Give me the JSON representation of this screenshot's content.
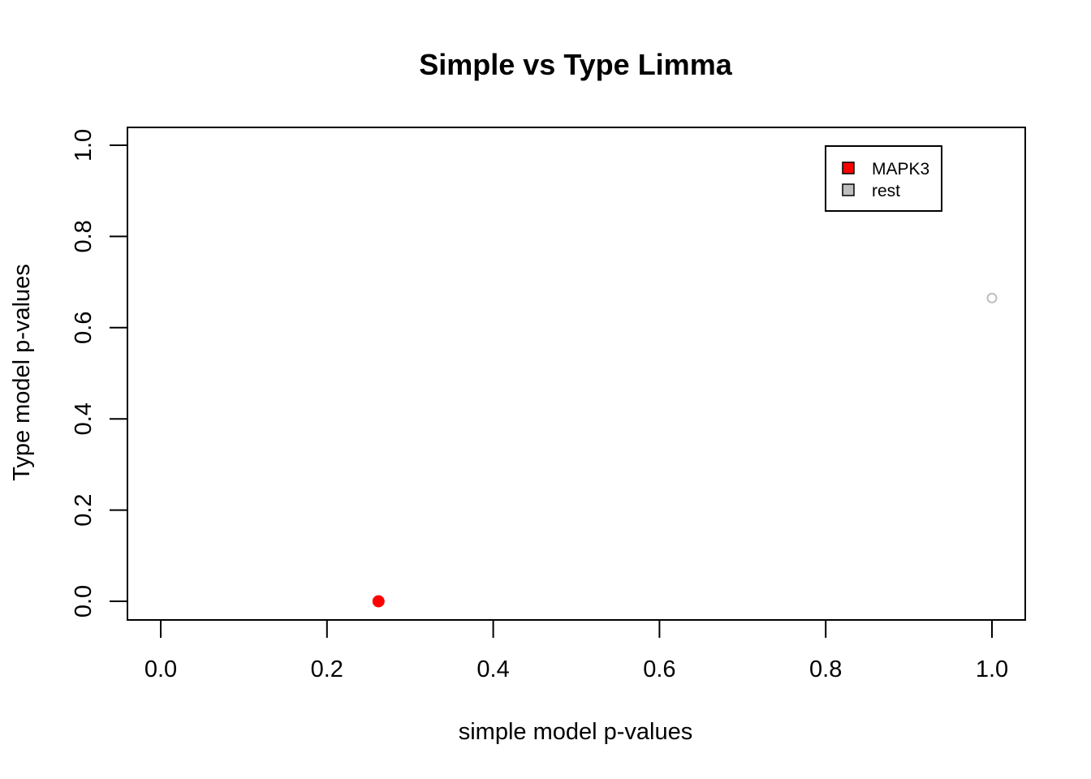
{
  "chart_data": {
    "type": "scatter",
    "title": "Simple vs Type Limma",
    "xlabel": "simple model p-values",
    "ylabel": "Type model p-values",
    "xlim": [
      0,
      1
    ],
    "ylim": [
      0,
      1
    ],
    "xticks": [
      "0.0",
      "0.2",
      "0.4",
      "0.6",
      "0.8",
      "1.0"
    ],
    "yticks": [
      "0.0",
      "0.2",
      "0.4",
      "0.6",
      "0.8",
      "1.0"
    ],
    "grid": false,
    "legend_position": "top-right",
    "series": [
      {
        "name": "MAPK3",
        "color": "#ff0000",
        "marker": "filled-circle",
        "points": [
          {
            "x": 0.262,
            "y": 0.0
          }
        ]
      },
      {
        "name": "rest",
        "color": "#bebebe",
        "marker": "open-circle",
        "points": [
          {
            "x": 1.0,
            "y": 0.665
          }
        ]
      }
    ]
  }
}
